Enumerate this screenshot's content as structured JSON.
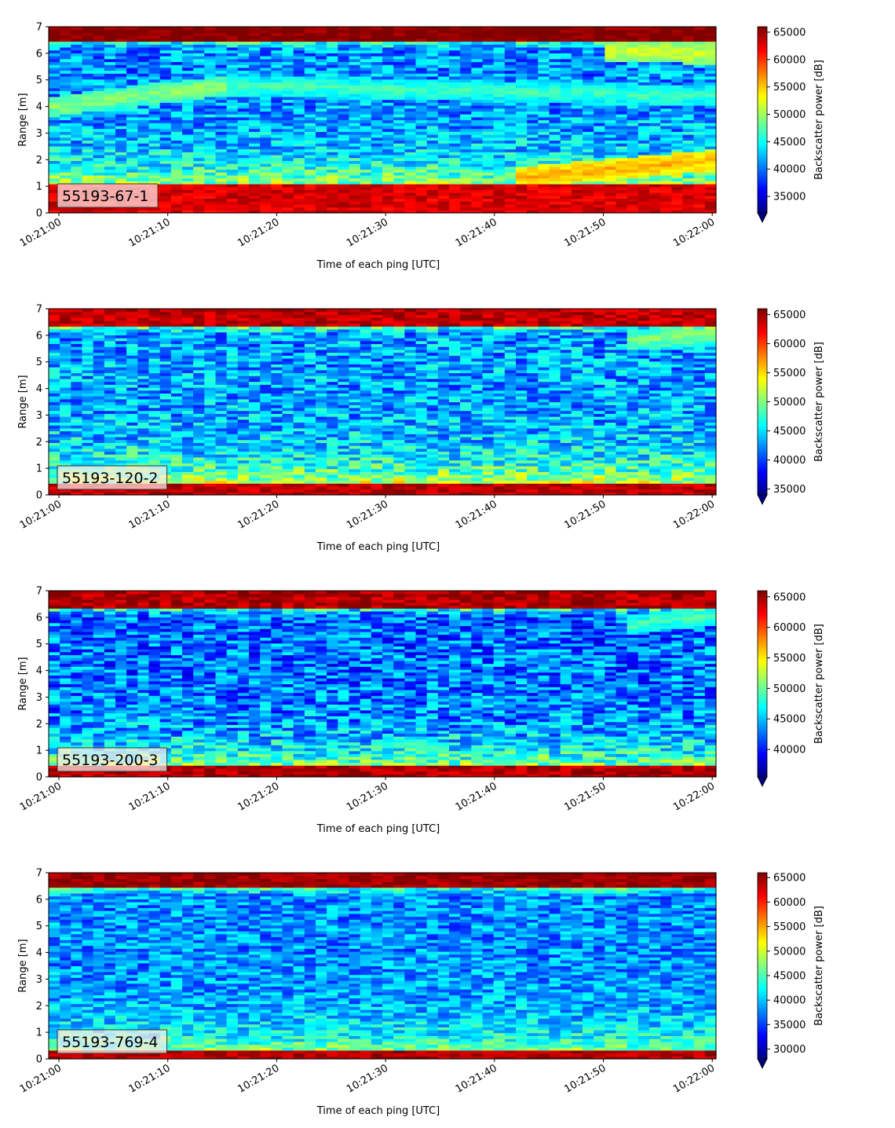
{
  "chart_data": [
    {
      "type": "heatmap",
      "label": "55193-67-1",
      "xlabel": "Time of each ping [UTC]",
      "ylabel": "Range [m]",
      "colorbar_label": "Backscatter power [dB]",
      "xlim": [
        "10:21:00",
        "10:22:00"
      ],
      "ylim": [
        0,
        7
      ],
      "x_ticks": [
        "10:21:00",
        "10:21:10",
        "10:21:20",
        "10:21:30",
        "10:21:40",
        "10:21:50",
        "10:22:00"
      ],
      "y_ticks": [
        "0",
        "1",
        "2",
        "3",
        "4",
        "5",
        "6",
        "7"
      ],
      "colorbar_range": [
        32000,
        66000
      ],
      "colorbar_ticks": [
        "35000",
        "40000",
        "45000",
        "50000",
        "55000",
        "60000",
        "65000"
      ],
      "colorbar_extend": "min",
      "colormap": "jet",
      "features": {
        "seabed_top": 6.45,
        "seabed_value": 66000,
        "nearfield_top": 1.1,
        "nearfield_value": 63000,
        "noise_floor": 41000,
        "layers": [
          {
            "t0": 0,
            "r0": 4.0,
            "t1": 16,
            "r1": 4.8,
            "value": 49500
          },
          {
            "t0": 16,
            "r0": 4.8,
            "t1": 60,
            "r1": 4.4,
            "value": 47000
          },
          {
            "t0": 42,
            "r0": 1.35,
            "t1": 60,
            "r1": 2.0,
            "value": 56000
          },
          {
            "t0": 50,
            "r0": 6.1,
            "t1": 60,
            "r1": 6.0,
            "value": 52000
          }
        ]
      }
    },
    {
      "type": "heatmap",
      "label": "55193-120-2",
      "xlabel": "Time of each ping [UTC]",
      "ylabel": "Range [m]",
      "colorbar_label": "Backscatter power [dB]",
      "xlim": [
        "10:21:00",
        "10:22:00"
      ],
      "ylim": [
        0,
        7
      ],
      "x_ticks": [
        "10:21:00",
        "10:21:10",
        "10:21:20",
        "10:21:30",
        "10:21:40",
        "10:21:50",
        "10:22:00"
      ],
      "y_ticks": [
        "0",
        "1",
        "2",
        "3",
        "4",
        "5",
        "6",
        "7"
      ],
      "colorbar_range": [
        34000,
        66000
      ],
      "colorbar_ticks": [
        "35000",
        "40000",
        "45000",
        "50000",
        "55000",
        "60000",
        "65000"
      ],
      "colorbar_extend": "min",
      "colormap": "jet",
      "features": {
        "seabed_top": 6.35,
        "seabed_value": 64000,
        "nearfield_top": 0.45,
        "nearfield_value": 64000,
        "noise_floor": 43000,
        "layers": [
          {
            "t0": 52,
            "r0": 5.8,
            "t1": 60,
            "r1": 6.1,
            "value": 50000
          }
        ]
      }
    },
    {
      "type": "heatmap",
      "label": "55193-200-3",
      "xlabel": "Time of each ping [UTC]",
      "ylabel": "Range [m]",
      "colorbar_label": "Backscatter power [dB]",
      "xlim": [
        "10:21:00",
        "10:22:00"
      ],
      "ylim": [
        0,
        7
      ],
      "x_ticks": [
        "10:21:00",
        "10:21:10",
        "10:21:20",
        "10:21:30",
        "10:21:40",
        "10:21:50",
        "10:22:00"
      ],
      "y_ticks": [
        "0",
        "1",
        "2",
        "3",
        "4",
        "5",
        "6",
        "7"
      ],
      "colorbar_range": [
        35500,
        66000
      ],
      "colorbar_ticks": [
        "40000",
        "45000",
        "50000",
        "55000",
        "60000",
        "65000"
      ],
      "colorbar_extend": "min",
      "colormap": "jet",
      "features": {
        "seabed_top": 6.35,
        "seabed_value": 64500,
        "nearfield_top": 0.4,
        "nearfield_value": 64500,
        "noise_floor": 42500,
        "layers": [
          {
            "t0": 52,
            "r0": 5.7,
            "t1": 60,
            "r1": 6.1,
            "value": 49000
          }
        ]
      }
    },
    {
      "type": "heatmap",
      "label": "55193-769-4",
      "xlabel": "Time of each ping [UTC]",
      "ylabel": "Range [m]",
      "colorbar_label": "Backscatter power [dB]",
      "xlim": [
        "10:21:00",
        "10:22:00"
      ],
      "ylim": [
        0,
        7
      ],
      "x_ticks": [
        "10:21:00",
        "10:21:10",
        "10:21:20",
        "10:21:30",
        "10:21:40",
        "10:21:50",
        "10:22:00"
      ],
      "y_ticks": [
        "0",
        "1",
        "2",
        "3",
        "4",
        "5",
        "6",
        "7"
      ],
      "colorbar_range": [
        28000,
        66000
      ],
      "colorbar_ticks": [
        "30000",
        "35000",
        "40000",
        "45000",
        "50000",
        "55000",
        "60000",
        "65000"
      ],
      "colorbar_extend": "min",
      "colormap": "jet",
      "features": {
        "seabed_top": 6.4,
        "seabed_value": 65000,
        "nearfield_top": 0.3,
        "nearfield_value": 64000,
        "noise_floor": 38000,
        "layers": []
      }
    }
  ]
}
